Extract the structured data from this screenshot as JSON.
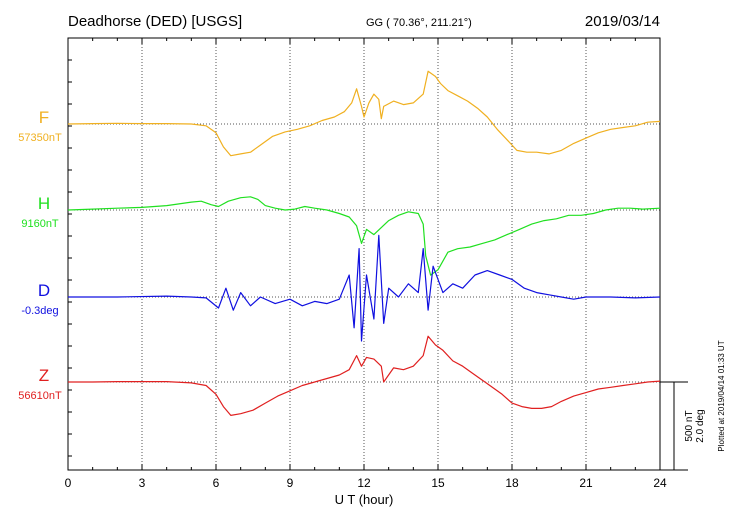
{
  "header": {
    "station": "Deadhorse (DED)  [USGS]",
    "coords": "GG ( 70.36°, 211.21°)",
    "date": "2019/03/14"
  },
  "footer": {
    "plotted": "Plotted at 2019/04/14 01:33 UT"
  },
  "scale": {
    "nt": "500 nT",
    "deg": "2.0 deg"
  },
  "chart_data": {
    "type": "line",
    "xlabel": "U T (hour)",
    "xlim": [
      0,
      24
    ],
    "xticks": [
      0,
      3,
      6,
      9,
      12,
      15,
      18,
      21,
      24
    ],
    "grid": true,
    "scale_bar_nT": 500,
    "scale_bar_deg": 2.0,
    "series": [
      {
        "name": "F",
        "baseline_label": "57350nT",
        "baseline": 57350,
        "unit": "nT",
        "color": "#f0b020",
        "points": [
          [
            0,
            57350
          ],
          [
            1,
            57352
          ],
          [
            2,
            57354
          ],
          [
            3,
            57352
          ],
          [
            4,
            57352
          ],
          [
            5,
            57350
          ],
          [
            5.6,
            57340
          ],
          [
            6.0,
            57300
          ],
          [
            6.3,
            57220
          ],
          [
            6.6,
            57170
          ],
          [
            7,
            57180
          ],
          [
            7.4,
            57190
          ],
          [
            7.8,
            57230
          ],
          [
            8.3,
            57280
          ],
          [
            8.8,
            57305
          ],
          [
            9.3,
            57320
          ],
          [
            9.8,
            57340
          ],
          [
            10.3,
            57370
          ],
          [
            10.8,
            57390
          ],
          [
            11.2,
            57420
          ],
          [
            11.5,
            57470
          ],
          [
            11.7,
            57550
          ],
          [
            11.9,
            57450
          ],
          [
            12.0,
            57390
          ],
          [
            12.2,
            57470
          ],
          [
            12.4,
            57520
          ],
          [
            12.6,
            57490
          ],
          [
            12.7,
            57380
          ],
          [
            12.8,
            57450
          ],
          [
            13.2,
            57480
          ],
          [
            13.6,
            57460
          ],
          [
            14.0,
            57470
          ],
          [
            14.4,
            57520
          ],
          [
            14.6,
            57650
          ],
          [
            14.9,
            57620
          ],
          [
            15.1,
            57580
          ],
          [
            15.4,
            57540
          ],
          [
            15.8,
            57510
          ],
          [
            16.2,
            57480
          ],
          [
            16.6,
            57440
          ],
          [
            17.0,
            57390
          ],
          [
            17.4,
            57320
          ],
          [
            17.8,
            57260
          ],
          [
            18.2,
            57200
          ],
          [
            18.6,
            57190
          ],
          [
            19.0,
            57190
          ],
          [
            19.5,
            57180
          ],
          [
            20.0,
            57200
          ],
          [
            20.5,
            57240
          ],
          [
            21.0,
            57270
          ],
          [
            21.5,
            57300
          ],
          [
            22.0,
            57320
          ],
          [
            22.5,
            57330
          ],
          [
            23.0,
            57340
          ],
          [
            23.5,
            57360
          ],
          [
            24,
            57365
          ]
        ]
      },
      {
        "name": "H",
        "baseline_label": "9160nT",
        "baseline": 9160,
        "unit": "nT",
        "color": "#20e020",
        "points": [
          [
            0,
            9160
          ],
          [
            1,
            9165
          ],
          [
            2,
            9170
          ],
          [
            3,
            9175
          ],
          [
            4,
            9185
          ],
          [
            5,
            9205
          ],
          [
            5.4,
            9210
          ],
          [
            5.8,
            9190
          ],
          [
            6.1,
            9180
          ],
          [
            6.5,
            9210
          ],
          [
            7.0,
            9230
          ],
          [
            7.4,
            9235
          ],
          [
            7.7,
            9220
          ],
          [
            8.0,
            9185
          ],
          [
            8.4,
            9170
          ],
          [
            8.8,
            9160
          ],
          [
            9.2,
            9165
          ],
          [
            9.6,
            9180
          ],
          [
            10.0,
            9170
          ],
          [
            10.5,
            9160
          ],
          [
            11.0,
            9140
          ],
          [
            11.4,
            9120
          ],
          [
            11.7,
            9070
          ],
          [
            11.9,
            8970
          ],
          [
            12.1,
            9050
          ],
          [
            12.4,
            9020
          ],
          [
            12.7,
            9060
          ],
          [
            13.0,
            9100
          ],
          [
            13.4,
            9130
          ],
          [
            13.8,
            9150
          ],
          [
            14.2,
            9140
          ],
          [
            14.4,
            9080
          ],
          [
            14.5,
            8900
          ],
          [
            14.7,
            8790
          ],
          [
            15.0,
            8820
          ],
          [
            15.4,
            8920
          ],
          [
            15.8,
            8940
          ],
          [
            16.3,
            8950
          ],
          [
            16.8,
            8970
          ],
          [
            17.3,
            8990
          ],
          [
            17.8,
            9020
          ],
          [
            18.3,
            9050
          ],
          [
            18.8,
            9080
          ],
          [
            19.3,
            9100
          ],
          [
            19.8,
            9110
          ],
          [
            20.3,
            9130
          ],
          [
            20.8,
            9130
          ],
          [
            21.3,
            9140
          ],
          [
            21.8,
            9160
          ],
          [
            22.3,
            9170
          ],
          [
            22.8,
            9170
          ],
          [
            23.3,
            9165
          ],
          [
            24,
            9170
          ]
        ]
      },
      {
        "name": "D",
        "baseline_label": "-0.3deg",
        "baseline": -0.3,
        "unit": "deg",
        "color": "#1010e0",
        "points": [
          [
            0,
            -0.3
          ],
          [
            2,
            -0.3
          ],
          [
            4,
            -0.28
          ],
          [
            5,
            -0.3
          ],
          [
            5.6,
            -0.32
          ],
          [
            6.1,
            -0.55
          ],
          [
            6.4,
            -0.1
          ],
          [
            6.7,
            -0.6
          ],
          [
            7.0,
            -0.2
          ],
          [
            7.4,
            -0.5
          ],
          [
            7.8,
            -0.3
          ],
          [
            8.4,
            -0.45
          ],
          [
            9.0,
            -0.35
          ],
          [
            9.5,
            -0.5
          ],
          [
            10.0,
            -0.4
          ],
          [
            10.5,
            -0.45
          ],
          [
            11.0,
            -0.35
          ],
          [
            11.4,
            0.2
          ],
          [
            11.6,
            -1.0
          ],
          [
            11.8,
            0.8
          ],
          [
            11.9,
            -1.3
          ],
          [
            12.1,
            0.2
          ],
          [
            12.4,
            -0.8
          ],
          [
            12.6,
            1.1
          ],
          [
            12.8,
            -0.9
          ],
          [
            13.0,
            -0.1
          ],
          [
            13.4,
            -0.3
          ],
          [
            13.8,
            0.0
          ],
          [
            14.2,
            -0.2
          ],
          [
            14.4,
            0.8
          ],
          [
            14.6,
            -0.6
          ],
          [
            14.8,
            0.4
          ],
          [
            15.2,
            -0.2
          ],
          [
            15.6,
            0.0
          ],
          [
            16.0,
            -0.1
          ],
          [
            16.5,
            0.2
          ],
          [
            17.0,
            0.3
          ],
          [
            17.5,
            0.2
          ],
          [
            18.0,
            0.1
          ],
          [
            18.5,
            -0.1
          ],
          [
            19.0,
            -0.2
          ],
          [
            19.5,
            -0.25
          ],
          [
            20.0,
            -0.3
          ],
          [
            20.5,
            -0.35
          ],
          [
            21.0,
            -0.3
          ],
          [
            22.0,
            -0.3
          ],
          [
            23.0,
            -0.32
          ],
          [
            24,
            -0.3
          ]
        ]
      },
      {
        "name": "Z",
        "baseline_label": "56610nT",
        "baseline": 56610,
        "unit": "nT",
        "color": "#e02020",
        "points": [
          [
            0,
            56610
          ],
          [
            1,
            56610
          ],
          [
            2,
            56612
          ],
          [
            3,
            56612
          ],
          [
            4,
            56612
          ],
          [
            5,
            56605
          ],
          [
            5.6,
            56590
          ],
          [
            6.0,
            56540
          ],
          [
            6.3,
            56470
          ],
          [
            6.6,
            56420
          ],
          [
            7,
            56430
          ],
          [
            7.5,
            56450
          ],
          [
            8,
            56490
          ],
          [
            8.5,
            56530
          ],
          [
            9,
            56560
          ],
          [
            9.5,
            56590
          ],
          [
            10,
            56610
          ],
          [
            10.5,
            56630
          ],
          [
            11,
            56650
          ],
          [
            11.4,
            56680
          ],
          [
            11.7,
            56760
          ],
          [
            11.9,
            56700
          ],
          [
            12.1,
            56750
          ],
          [
            12.4,
            56740
          ],
          [
            12.7,
            56700
          ],
          [
            12.8,
            56610
          ],
          [
            13.2,
            56690
          ],
          [
            13.6,
            56680
          ],
          [
            14.0,
            56700
          ],
          [
            14.4,
            56760
          ],
          [
            14.6,
            56870
          ],
          [
            14.9,
            56820
          ],
          [
            15.2,
            56790
          ],
          [
            15.6,
            56730
          ],
          [
            16.0,
            56700
          ],
          [
            16.4,
            56660
          ],
          [
            16.8,
            56620
          ],
          [
            17.2,
            56580
          ],
          [
            17.6,
            56540
          ],
          [
            18.0,
            56490
          ],
          [
            18.4,
            56470
          ],
          [
            18.8,
            56460
          ],
          [
            19.2,
            56460
          ],
          [
            19.6,
            56470
          ],
          [
            20.0,
            56500
          ],
          [
            20.5,
            56530
          ],
          [
            21.0,
            56550
          ],
          [
            21.5,
            56570
          ],
          [
            22.0,
            56580
          ],
          [
            22.5,
            56590
          ],
          [
            23.0,
            56600
          ],
          [
            23.5,
            56610
          ],
          [
            24,
            56615
          ]
        ]
      }
    ]
  }
}
